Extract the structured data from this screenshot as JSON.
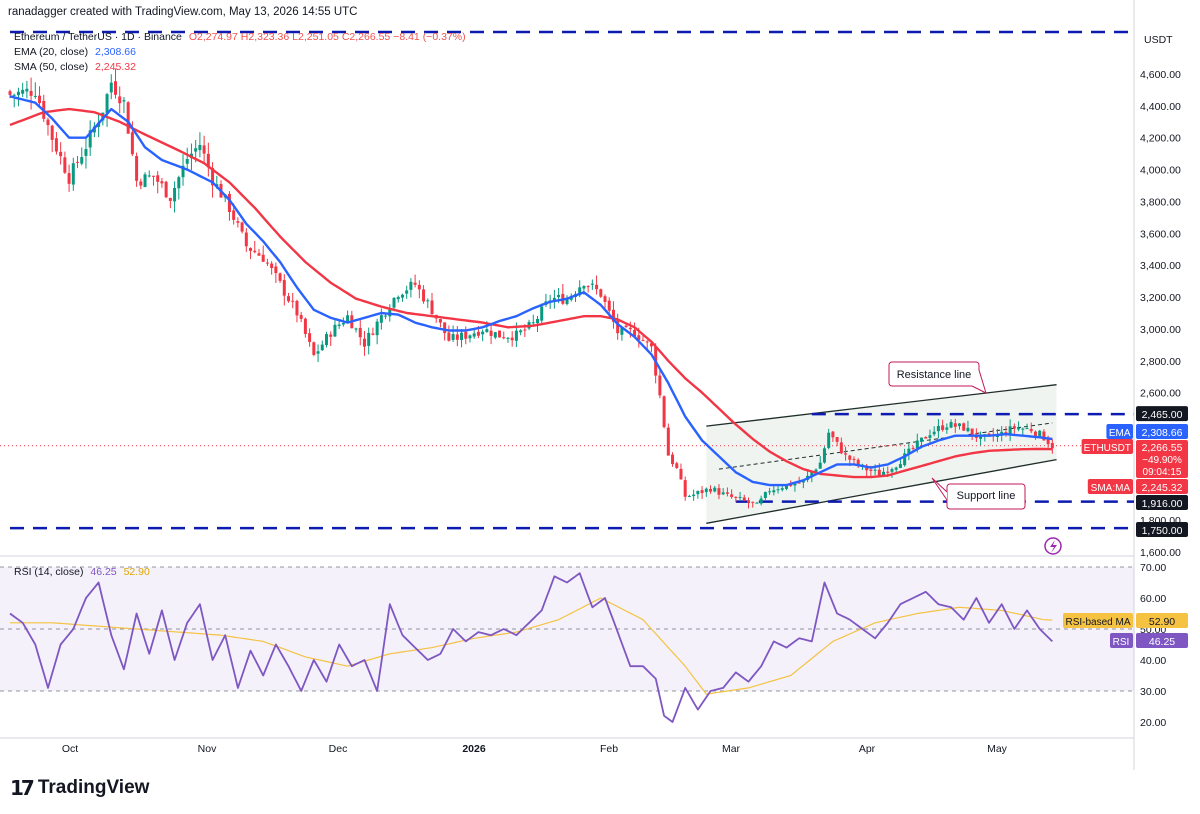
{
  "header": {
    "credit": "ranadagger created with TradingView.com, May 13, 2026 14:55 UTC"
  },
  "legend": {
    "symbol_line": "Ethereum / TetherUS · 1D · Binance",
    "ohlc": {
      "o": "O2,274.97",
      "h": "H2,323.36",
      "l": "L2,251.05",
      "c": "C2,266.55",
      "chg": "−8.41 (−0.37%)"
    },
    "ema_label": "EMA (20, close)",
    "ema_value": "2,308.66",
    "sma_label": "SMA (50, close)",
    "sma_value": "2,245.32",
    "rsi_label": "RSI (14, close)",
    "rsi_value": "46.25",
    "rsi_ma_value": "52.90"
  },
  "colors": {
    "up": "#089981",
    "down": "#f23645",
    "ema": "#2962ff",
    "sma": "#f23645",
    "rsi": "#7e57c2",
    "rsi_ma": "#f5c242",
    "levels": "#0d1bb0",
    "channel": "#1f2d2b"
  },
  "axis": {
    "currency": "USDT",
    "price_ticks": [
      "4,600.00",
      "4,400.00",
      "4,200.00",
      "4,000.00",
      "3,800.00",
      "3,600.00",
      "3,400.00",
      "3,200.00",
      "3,000.00",
      "2,800.00",
      "2,600.00",
      "1,800.00",
      "1,600.00"
    ],
    "rsi_ticks": [
      "70.00",
      "60.00",
      "50.00",
      "40.00",
      "30.00",
      "20.00"
    ],
    "time_ticks": [
      "Oct",
      "Nov",
      "Dec",
      "2026",
      "Feb",
      "Mar",
      "Apr",
      "May"
    ]
  },
  "price_labels": {
    "level_top": "2,465.00",
    "ema": "2,308.66",
    "ema_tag": "EMA",
    "close": "2,266.55",
    "close_tag": "ETHUSDT",
    "change": "−49.90%",
    "countdown": "09:04:15",
    "sma": "2,245.32",
    "sma_tag": "SMA:MA",
    "support": "1,916.00",
    "level_bottom": "1,750.00"
  },
  "rsi_labels": {
    "ma_tag": "RSI-based MA",
    "ma": "52.90",
    "rsi_tag": "RSI",
    "rsi": "46.25"
  },
  "annotations": {
    "resistance": "Resistance line",
    "support": "Support line"
  },
  "brand": {
    "mark": "17",
    "name": "TradingView"
  },
  "chart_data": {
    "type": "candlestick",
    "symbol": "ETHUSDT",
    "interval": "1D",
    "ylim": [
      1600,
      4700
    ],
    "rsi_ylim": [
      15,
      72
    ],
    "x_ticks": [
      "Oct",
      "Nov",
      "Dec",
      "2026",
      "Feb",
      "Mar",
      "Apr",
      "May"
    ],
    "close_anchors": [
      [
        0,
        4470
      ],
      [
        6,
        4500
      ],
      [
        10,
        4200
      ],
      [
        14,
        3950
      ],
      [
        18,
        4150
      ],
      [
        22,
        4380
      ],
      [
        24,
        4550
      ],
      [
        27,
        4420
      ],
      [
        30,
        3930
      ],
      [
        34,
        3960
      ],
      [
        38,
        3830
      ],
      [
        42,
        4070
      ],
      [
        45,
        4160
      ],
      [
        48,
        3940
      ],
      [
        52,
        3760
      ],
      [
        56,
        3520
      ],
      [
        60,
        3450
      ],
      [
        64,
        3280
      ],
      [
        68,
        3100
      ],
      [
        72,
        2830
      ],
      [
        76,
        2980
      ],
      [
        80,
        3080
      ],
      [
        84,
        2910
      ],
      [
        88,
        3080
      ],
      [
        92,
        3230
      ],
      [
        96,
        3280
      ],
      [
        100,
        3120
      ],
      [
        104,
        2930
      ],
      [
        108,
        2960
      ],
      [
        112,
        3000
      ],
      [
        116,
        2960
      ],
      [
        120,
        2960
      ],
      [
        124,
        3030
      ],
      [
        128,
        3190
      ],
      [
        132,
        3190
      ],
      [
        136,
        3300
      ],
      [
        140,
        3220
      ],
      [
        144,
        2980
      ],
      [
        148,
        2980
      ],
      [
        152,
        2880
      ],
      [
        154,
        2580
      ],
      [
        156,
        2210
      ],
      [
        158,
        2120
      ],
      [
        160,
        1950
      ],
      [
        162,
        1960
      ],
      [
        166,
        2000
      ],
      [
        170,
        1950
      ],
      [
        174,
        1920
      ],
      [
        177,
        1890
      ],
      [
        180,
        1990
      ],
      [
        184,
        2020
      ],
      [
        188,
        2040
      ],
      [
        192,
        2160
      ],
      [
        194,
        2350
      ],
      [
        198,
        2200
      ],
      [
        202,
        2130
      ],
      [
        206,
        2090
      ],
      [
        210,
        2150
      ],
      [
        214,
        2250
      ],
      [
        218,
        2350
      ],
      [
        222,
        2400
      ],
      [
        226,
        2380
      ],
      [
        230,
        2310
      ],
      [
        234,
        2330
      ],
      [
        238,
        2380
      ],
      [
        242,
        2370
      ],
      [
        245,
        2320
      ],
      [
        247,
        2266
      ]
    ],
    "ema20": {
      "name": "EMA (20, close)",
      "anchors": [
        [
          0,
          4460
        ],
        [
          6,
          4420
        ],
        [
          10,
          4320
        ],
        [
          14,
          4200
        ],
        [
          18,
          4200
        ],
        [
          24,
          4380
        ],
        [
          28,
          4300
        ],
        [
          32,
          4140
        ],
        [
          36,
          4060
        ],
        [
          42,
          4000
        ],
        [
          48,
          3920
        ],
        [
          52,
          3810
        ],
        [
          56,
          3660
        ],
        [
          60,
          3550
        ],
        [
          64,
          3420
        ],
        [
          68,
          3260
        ],
        [
          72,
          3120
        ],
        [
          76,
          3070
        ],
        [
          80,
          3040
        ],
        [
          84,
          3070
        ],
        [
          88,
          3100
        ],
        [
          92,
          3090
        ],
        [
          96,
          3040
        ],
        [
          100,
          3010
        ],
        [
          104,
          2990
        ],
        [
          108,
          2990
        ],
        [
          112,
          3010
        ],
        [
          116,
          3050
        ],
        [
          120,
          3080
        ],
        [
          124,
          3130
        ],
        [
          128,
          3170
        ],
        [
          132,
          3190
        ],
        [
          136,
          3230
        ],
        [
          140,
          3150
        ],
        [
          144,
          3030
        ],
        [
          148,
          2950
        ],
        [
          152,
          2840
        ],
        [
          156,
          2660
        ],
        [
          160,
          2450
        ],
        [
          164,
          2300
        ],
        [
          168,
          2200
        ],
        [
          172,
          2100
        ],
        [
          176,
          2040
        ],
        [
          180,
          2020
        ],
        [
          184,
          2020
        ],
        [
          188,
          2050
        ],
        [
          192,
          2100
        ],
        [
          196,
          2150
        ],
        [
          200,
          2150
        ],
        [
          204,
          2130
        ],
        [
          208,
          2150
        ],
        [
          212,
          2200
        ],
        [
          216,
          2260
        ],
        [
          220,
          2300
        ],
        [
          224,
          2330
        ],
        [
          228,
          2330
        ],
        [
          232,
          2330
        ],
        [
          236,
          2340
        ],
        [
          240,
          2330
        ],
        [
          244,
          2320
        ],
        [
          247,
          2309
        ]
      ]
    },
    "sma50": {
      "name": "SMA (50, close)",
      "anchors": [
        [
          0,
          4280
        ],
        [
          8,
          4360
        ],
        [
          14,
          4380
        ],
        [
          20,
          4360
        ],
        [
          26,
          4300
        ],
        [
          32,
          4220
        ],
        [
          40,
          4120
        ],
        [
          46,
          4040
        ],
        [
          52,
          3920
        ],
        [
          58,
          3760
        ],
        [
          64,
          3580
        ],
        [
          70,
          3420
        ],
        [
          76,
          3290
        ],
        [
          82,
          3190
        ],
        [
          88,
          3140
        ],
        [
          94,
          3100
        ],
        [
          100,
          3080
        ],
        [
          106,
          3060
        ],
        [
          112,
          3040
        ],
        [
          118,
          3010
        ],
        [
          124,
          3020
        ],
        [
          130,
          3050
        ],
        [
          136,
          3080
        ],
        [
          140,
          3080
        ],
        [
          144,
          3060
        ],
        [
          148,
          3010
        ],
        [
          152,
          2920
        ],
        [
          156,
          2800
        ],
        [
          160,
          2690
        ],
        [
          164,
          2600
        ],
        [
          168,
          2500
        ],
        [
          172,
          2400
        ],
        [
          176,
          2310
        ],
        [
          180,
          2230
        ],
        [
          184,
          2170
        ],
        [
          188,
          2120
        ],
        [
          192,
          2090
        ],
        [
          196,
          2080
        ],
        [
          200,
          2070
        ],
        [
          204,
          2070
        ],
        [
          208,
          2080
        ],
        [
          212,
          2110
        ],
        [
          216,
          2140
        ],
        [
          220,
          2170
        ],
        [
          224,
          2200
        ],
        [
          228,
          2220
        ],
        [
          232,
          2235
        ],
        [
          236,
          2240
        ],
        [
          240,
          2245
        ],
        [
          244,
          2247
        ],
        [
          247,
          2245
        ]
      ]
    },
    "rsi": {
      "name": "RSI (14, close)",
      "anchors": [
        [
          0,
          55
        ],
        [
          3,
          52
        ],
        [
          6,
          45
        ],
        [
          9,
          31
        ],
        [
          12,
          45
        ],
        [
          15,
          50
        ],
        [
          18,
          60
        ],
        [
          21,
          65
        ],
        [
          24,
          48
        ],
        [
          27,
          37
        ],
        [
          30,
          55
        ],
        [
          33,
          42
        ],
        [
          36,
          56
        ],
        [
          39,
          40
        ],
        [
          42,
          52
        ],
        [
          45,
          58
        ],
        [
          48,
          40
        ],
        [
          51,
          48
        ],
        [
          54,
          31
        ],
        [
          57,
          43
        ],
        [
          60,
          35
        ],
        [
          63,
          45
        ],
        [
          66,
          38
        ],
        [
          69,
          30
        ],
        [
          72,
          40
        ],
        [
          75,
          33
        ],
        [
          78,
          45
        ],
        [
          81,
          38
        ],
        [
          84,
          40
        ],
        [
          87,
          30
        ],
        [
          90,
          58
        ],
        [
          93,
          48
        ],
        [
          96,
          44
        ],
        [
          99,
          40
        ],
        [
          102,
          42
        ],
        [
          105,
          50
        ],
        [
          108,
          46
        ],
        [
          111,
          49
        ],
        [
          114,
          48
        ],
        [
          117,
          50
        ],
        [
          120,
          48
        ],
        [
          123,
          52
        ],
        [
          126,
          56
        ],
        [
          129,
          67
        ],
        [
          132,
          65
        ],
        [
          135,
          68
        ],
        [
          138,
          57
        ],
        [
          141,
          60
        ],
        [
          144,
          49
        ],
        [
          147,
          38
        ],
        [
          150,
          38
        ],
        [
          153,
          34
        ],
        [
          155,
          22
        ],
        [
          157,
          20
        ],
        [
          160,
          31
        ],
        [
          163,
          24
        ],
        [
          166,
          30
        ],
        [
          169,
          31
        ],
        [
          172,
          36
        ],
        [
          175,
          33
        ],
        [
          178,
          38
        ],
        [
          181,
          46
        ],
        [
          184,
          44
        ],
        [
          187,
          47
        ],
        [
          190,
          46
        ],
        [
          193,
          65
        ],
        [
          196,
          55
        ],
        [
          199,
          53
        ],
        [
          202,
          50
        ],
        [
          205,
          47
        ],
        [
          208,
          52
        ],
        [
          211,
          58
        ],
        [
          214,
          60
        ],
        [
          217,
          62
        ],
        [
          220,
          58
        ],
        [
          223,
          57
        ],
        [
          226,
          53
        ],
        [
          229,
          60
        ],
        [
          232,
          52
        ],
        [
          235,
          58
        ],
        [
          238,
          50
        ],
        [
          241,
          56
        ],
        [
          244,
          50
        ],
        [
          247,
          46
        ]
      ]
    },
    "rsi_ma": {
      "name": "RSI-based MA",
      "anchors": [
        [
          0,
          52
        ],
        [
          10,
          52
        ],
        [
          20,
          51
        ],
        [
          30,
          50
        ],
        [
          40,
          49
        ],
        [
          50,
          48
        ],
        [
          60,
          46
        ],
        [
          70,
          41
        ],
        [
          80,
          38
        ],
        [
          90,
          42
        ],
        [
          100,
          44
        ],
        [
          110,
          47
        ],
        [
          120,
          49
        ],
        [
          130,
          53
        ],
        [
          140,
          60
        ],
        [
          150,
          53
        ],
        [
          160,
          38
        ],
        [
          165,
          29
        ],
        [
          175,
          31
        ],
        [
          185,
          35
        ],
        [
          195,
          46
        ],
        [
          205,
          52
        ],
        [
          215,
          55
        ],
        [
          225,
          57
        ],
        [
          235,
          56
        ],
        [
          245,
          53
        ],
        [
          247,
          52.9
        ]
      ]
    },
    "levels": [
      2465,
      1916,
      1750,
      4700
    ],
    "channel": {
      "upper": [
        [
          165,
          2390
        ],
        [
          248,
          2650
        ]
      ],
      "lower": [
        [
          165,
          1780
        ],
        [
          248,
          2180
        ]
      ],
      "mid": [
        [
          168,
          2120
        ],
        [
          247,
          2410
        ]
      ]
    }
  }
}
